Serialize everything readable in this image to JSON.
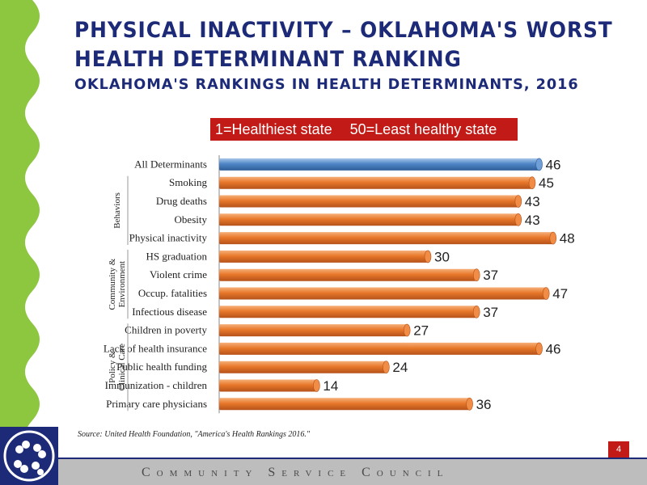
{
  "title": {
    "line1": "PHYSICAL INACTIVITY – OKLAHOMA'S WORST",
    "line2": "HEALTH DETERMINANT RANKING",
    "subtitle": "OKLAHOMA'S RANKINGS IN HEALTH DETERMINANTS, 2016"
  },
  "legend": {
    "healthiest": "1=Healthiest state",
    "least": "50=Least healthy state"
  },
  "source": "Source:  United Health Foundation, \"America's Health Rankings 2016.\"",
  "page_number": "4",
  "footer": "Community Service Council",
  "colors": {
    "title": "#1c2a78",
    "highlight_bar": "#4f86c6",
    "bar": "#e8782a",
    "legend_bg": "#c21b17",
    "wave": "#8dc63f"
  },
  "chart_data": {
    "type": "bar",
    "orientation": "horizontal",
    "categories": [
      "All Determinants",
      "Smoking",
      "Drug deaths",
      "Obesity",
      "Physical inactivity",
      "HS graduation",
      "Violent crime",
      "Occup. fatalities",
      "Infectious disease",
      "Children in poverty",
      "Lack of health insurance",
      "Public health funding",
      "Immunization - children",
      "Primary care physicians"
    ],
    "values": [
      46,
      45,
      43,
      43,
      48,
      30,
      37,
      47,
      37,
      27,
      46,
      24,
      14,
      36
    ],
    "groups": [
      {
        "label_lines": [
          "Behaviors"
        ],
        "start": 1,
        "end": 4
      },
      {
        "label_lines": [
          "Community &",
          "Environment"
        ],
        "start": 5,
        "end": 8
      },
      {
        "label_lines": [
          "Policy &",
          "Clinical Care"
        ],
        "start": 9,
        "end": 13
      }
    ],
    "xlim": [
      0,
      50
    ],
    "highlight_index": 0
  }
}
